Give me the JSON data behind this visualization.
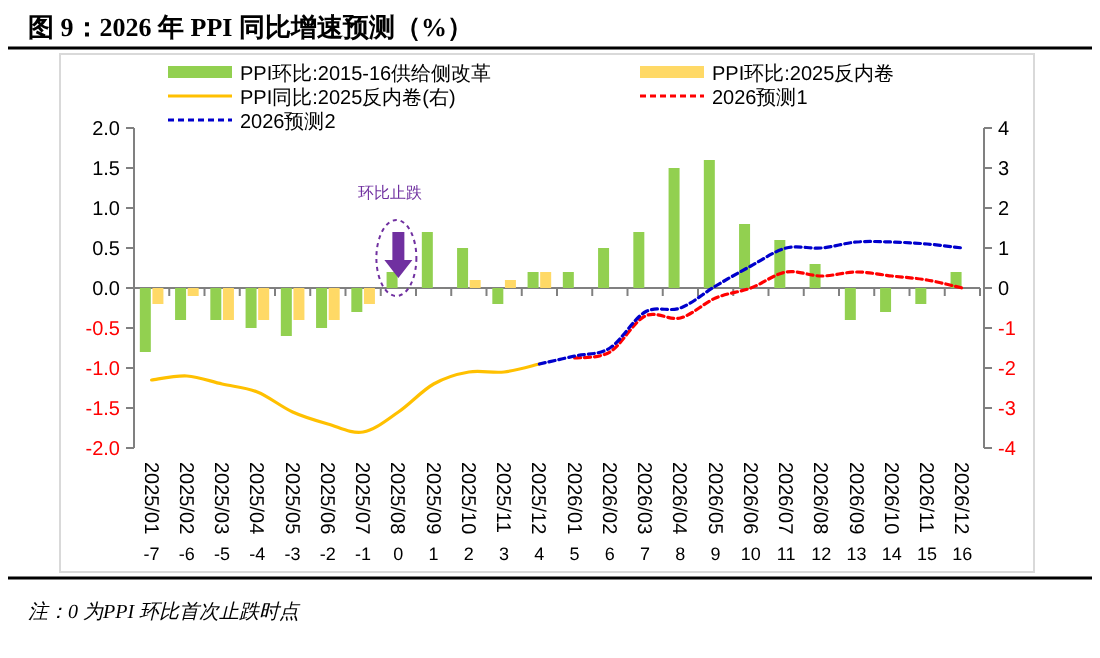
{
  "chart_data": {
    "type": "bar",
    "title": "图 9：2026 年 PPI 同比增速预测（%）",
    "categories": [
      "2025/01 -7",
      "2025/02 -6",
      "2025/03 -5",
      "2025/04 -4",
      "2025/05 -3",
      "2025/06 -2",
      "2025/07 -1",
      "2025/08 0",
      "2025/09 1",
      "2025/10 2",
      "2025/11 3",
      "2025/12 4",
      "2026/01 5",
      "2026/02 6",
      "2026/03 7",
      "2026/04 8",
      "2026/05 9",
      "2026/06 10",
      "2026/07 11",
      "2026/08 12",
      "2026/09 13",
      "2026/10 14",
      "2026/11 15",
      "2026/12 16"
    ],
    "series": [
      {
        "name": "PPI环比:2015-16供给侧改革",
        "color": "#92d050",
        "values": [
          -0.8,
          -0.4,
          -0.4,
          -0.5,
          -0.6,
          -0.5,
          -0.3,
          0.2,
          0.7,
          0.5,
          -0.2,
          0.2,
          0.2,
          0.5,
          0.7,
          1.5,
          1.6,
          0.8,
          0.6,
          0.3,
          -0.4,
          -0.3,
          -0.2,
          0.2
        ]
      },
      {
        "name": "PPI环比:2025反内卷",
        "color": "#ffd966",
        "values": [
          -0.2,
          -0.1,
          -0.4,
          -0.4,
          -0.4,
          -0.4,
          -0.2,
          0.0,
          0.0,
          0.1,
          0.1,
          0.2,
          null,
          null,
          null,
          null,
          null,
          null,
          null,
          null,
          null,
          null,
          null,
          null
        ]
      },
      {
        "name": "PPI同比:2025反内卷(右)",
        "type": "line",
        "axis": "y2",
        "color": "#ffc000",
        "line_style": "solid",
        "values": [
          -2.3,
          -2.2,
          -2.4,
          -2.6,
          -3.1,
          -3.4,
          -3.6,
          -3.1,
          -2.4,
          -2.1,
          -2.1,
          -1.9,
          null,
          null,
          null,
          null,
          null,
          null,
          null,
          null,
          null,
          null,
          null,
          null
        ]
      },
      {
        "name": "2026预测1",
        "type": "line",
        "axis": "y2",
        "color": "#ff0000",
        "line_style": "dashed",
        "values": [
          null,
          null,
          null,
          null,
          null,
          null,
          null,
          null,
          null,
          null,
          null,
          null,
          -1.75,
          -1.6,
          -0.7,
          -0.75,
          -0.25,
          0.0,
          0.4,
          0.3,
          0.4,
          0.3,
          0.2,
          0.0
        ]
      },
      {
        "name": "2026预测2",
        "type": "line",
        "axis": "y2",
        "color": "#0000cc",
        "line_style": "dashed",
        "values": [
          null,
          null,
          null,
          null,
          null,
          null,
          null,
          null,
          null,
          null,
          null,
          -1.9,
          -1.7,
          -1.5,
          -0.6,
          -0.5,
          0.05,
          0.55,
          1.0,
          1.0,
          1.15,
          1.15,
          1.1,
          1.0
        ]
      }
    ],
    "ylim": [
      -2,
      2
    ],
    "yticks": [
      {
        "value": -2,
        "label": "-2.0"
      },
      {
        "value": -1.5,
        "label": "-1.5"
      },
      {
        "value": -1,
        "label": "-1.0"
      },
      {
        "value": -0.5,
        "label": "-0.5"
      },
      {
        "value": 0,
        "label": "0.0"
      },
      {
        "value": 0.5,
        "label": "0.5"
      },
      {
        "value": 1,
        "label": "1.0"
      },
      {
        "value": 1.5,
        "label": "1.5"
      },
      {
        "value": 2,
        "label": "2.0"
      }
    ],
    "y2lim": [
      -4,
      4
    ],
    "y2ticks": [
      -4,
      -3,
      -2,
      -1,
      0,
      1,
      2,
      3,
      4
    ],
    "legend": "top",
    "annotations": [
      "环比止跌",
      "注：0 为PPI 环比首次止跌时点"
    ]
  }
}
